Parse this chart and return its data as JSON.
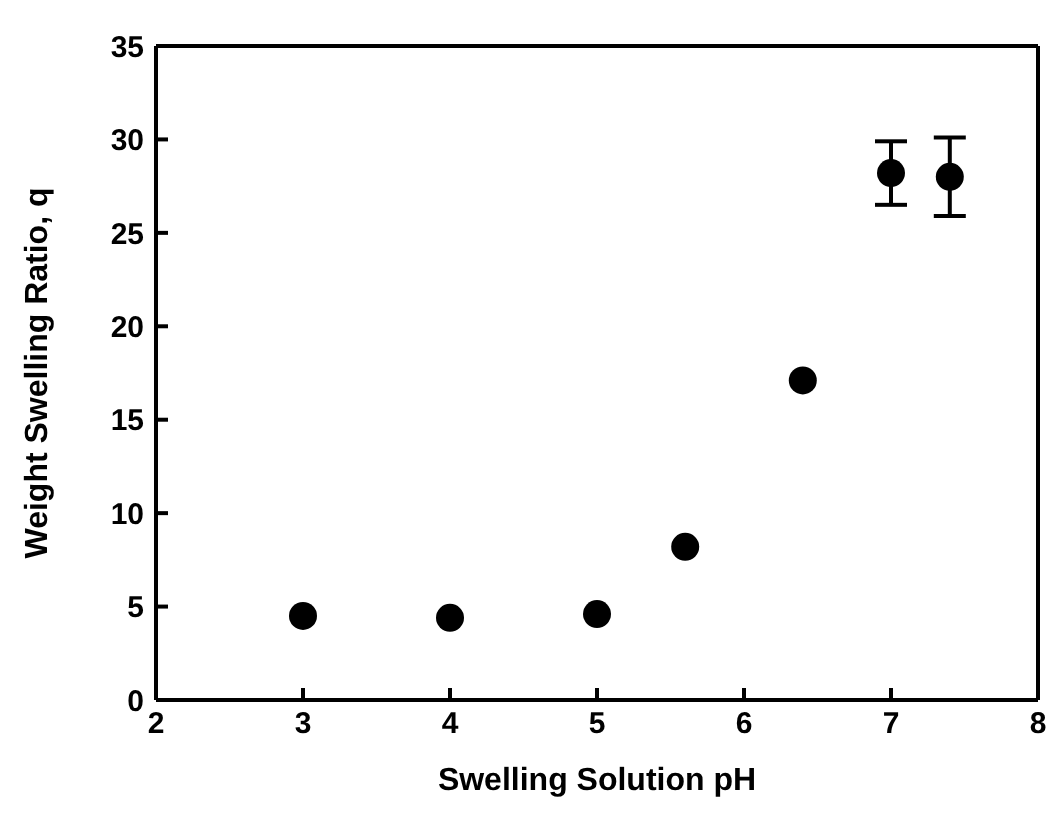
{
  "chart_data": {
    "type": "scatter",
    "xlabel": "Swelling Solution pH",
    "ylabel": "Weight Swelling Ratio, q",
    "x": [
      3,
      4,
      5,
      5.6,
      6.4,
      7,
      7.4
    ],
    "values": [
      4.5,
      4.4,
      4.6,
      8.2,
      17.1,
      28.2,
      28.0
    ],
    "errors": [
      null,
      null,
      null,
      null,
      null,
      1.7,
      2.1
    ],
    "color": "#000000",
    "marker": "circle",
    "xlim": [
      2,
      8
    ],
    "xticks": [
      2,
      3,
      4,
      5,
      6,
      7,
      8
    ],
    "ylim": [
      0,
      35
    ],
    "yticks": [
      0,
      5,
      10,
      15,
      20,
      25,
      30,
      35
    ]
  }
}
